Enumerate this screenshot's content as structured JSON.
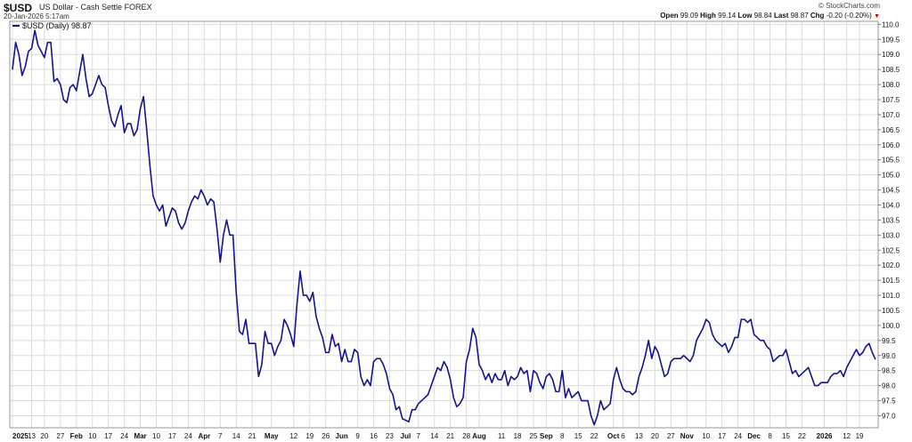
{
  "header": {
    "symbol": "$USD",
    "description": "US Dollar - Cash Settle",
    "exchange": "FOREX",
    "datetime": "20-Jan-2026 5:17am",
    "brand": "© StockCharts.com",
    "open_label": "Open",
    "open": "99.09",
    "high_label": "High",
    "high": "99.14",
    "low_label": "Low",
    "low": "98.84",
    "last_label": "Last",
    "last": "98.87",
    "chg_label": "Chg",
    "chg": "-0.20 (-0.20%)",
    "arrow_glyph": "▼"
  },
  "colors": {
    "line": "#14148c",
    "grid": "#dcdcdc",
    "arrow": "#cc0000"
  },
  "chart_data": {
    "type": "line",
    "legend": "$USD (Daily) 98.87",
    "legend_position": "top-left",
    "grid": true,
    "ylim": [
      96.6,
      110.1
    ],
    "y_ticks": [
      "110.0",
      "109.5",
      "109.0",
      "108.5",
      "108.0",
      "107.5",
      "107.0",
      "106.5",
      "106.0",
      "105.5",
      "105.0",
      "104.5",
      "104.0",
      "103.5",
      "103.0",
      "102.5",
      "102.0",
      "101.5",
      "101.0",
      "100.5",
      "100.0",
      "99.5",
      "99.0",
      "98.5",
      "98.0",
      "97.5",
      "97.0"
    ],
    "x_ticks": [
      {
        "label": "2025",
        "index": 0,
        "bold": true
      },
      {
        "label": "13",
        "index": 6
      },
      {
        "label": "20",
        "index": 10
      },
      {
        "label": "27",
        "index": 15
      },
      {
        "label": "Feb",
        "index": 20,
        "bold": true
      },
      {
        "label": "10",
        "index": 25
      },
      {
        "label": "17",
        "index": 30
      },
      {
        "label": "24",
        "index": 35
      },
      {
        "label": "Mar",
        "index": 40,
        "bold": true
      },
      {
        "label": "10",
        "index": 45
      },
      {
        "label": "17",
        "index": 50
      },
      {
        "label": "24",
        "index": 55
      },
      {
        "label": "Apr",
        "index": 60,
        "bold": true
      },
      {
        "label": "7",
        "index": 65
      },
      {
        "label": "14",
        "index": 70
      },
      {
        "label": "21",
        "index": 75
      },
      {
        "label": "May",
        "index": 81,
        "bold": true
      },
      {
        "label": "12",
        "index": 88
      },
      {
        "label": "19",
        "index": 93
      },
      {
        "label": "26",
        "index": 98
      },
      {
        "label": "Jun",
        "index": 103,
        "bold": true
      },
      {
        "label": "9",
        "index": 108
      },
      {
        "label": "16",
        "index": 113
      },
      {
        "label": "23",
        "index": 118
      },
      {
        "label": "Jul",
        "index": 123,
        "bold": true
      },
      {
        "label": "7",
        "index": 127
      },
      {
        "label": "14",
        "index": 132
      },
      {
        "label": "21",
        "index": 137
      },
      {
        "label": "28",
        "index": 142
      },
      {
        "label": "Aug",
        "index": 146,
        "bold": true
      },
      {
        "label": "11",
        "index": 153
      },
      {
        "label": "18",
        "index": 158
      },
      {
        "label": "25",
        "index": 163
      },
      {
        "label": "Sep",
        "index": 167,
        "bold": true
      },
      {
        "label": "8",
        "index": 172
      },
      {
        "label": "15",
        "index": 177
      },
      {
        "label": "22",
        "index": 182
      },
      {
        "label": "Oct",
        "index": 188,
        "bold": true
      },
      {
        "label": "6",
        "index": 191
      },
      {
        "label": "13",
        "index": 196
      },
      {
        "label": "20",
        "index": 201
      },
      {
        "label": "27",
        "index": 206
      },
      {
        "label": "Nov",
        "index": 211,
        "bold": true
      },
      {
        "label": "10",
        "index": 217
      },
      {
        "label": "17",
        "index": 222
      },
      {
        "label": "24",
        "index": 227
      },
      {
        "label": "Dec",
        "index": 232,
        "bold": true
      },
      {
        "label": "8",
        "index": 237
      },
      {
        "label": "15",
        "index": 242
      },
      {
        "label": "22",
        "index": 247
      },
      {
        "label": "2026",
        "index": 254,
        "bold": true
      },
      {
        "label": "12",
        "index": 261
      },
      {
        "label": "19",
        "index": 265
      }
    ],
    "values": [
      108.5,
      109.4,
      109.0,
      108.3,
      108.6,
      109.1,
      109.2,
      109.8,
      109.3,
      109.1,
      108.9,
      109.4,
      109.4,
      108.1,
      108.2,
      108.0,
      107.5,
      107.4,
      107.9,
      108.0,
      107.8,
      108.4,
      109.0,
      108.2,
      107.6,
      107.7,
      108.0,
      108.3,
      108.0,
      107.9,
      107.3,
      106.8,
      106.6,
      107.0,
      107.3,
      106.4,
      106.7,
      106.7,
      106.3,
      106.5,
      107.2,
      107.6,
      106.5,
      105.3,
      104.3,
      104.0,
      103.8,
      104.0,
      103.3,
      103.6,
      103.9,
      103.8,
      103.4,
      103.2,
      103.4,
      103.8,
      104.1,
      104.3,
      104.2,
      104.5,
      104.3,
      104.0,
      104.2,
      104.1,
      103.2,
      102.1,
      103.0,
      103.5,
      103.0,
      103.0,
      101.1,
      99.8,
      99.7,
      100.2,
      99.4,
      99.4,
      99.4,
      98.3,
      98.7,
      99.8,
      99.4,
      99.4,
      99.0,
      99.3,
      99.5,
      100.2,
      100.0,
      99.7,
      99.3,
      100.7,
      101.8,
      101.0,
      101.0,
      100.8,
      101.1,
      100.3,
      99.9,
      99.6,
      99.1,
      99.1,
      99.7,
      99.3,
      99.4,
      98.8,
      99.2,
      98.8,
      98.8,
      99.2,
      99.1,
      98.3,
      98.0,
      98.2,
      98.0,
      98.8,
      98.9,
      98.9,
      98.7,
      98.4,
      97.9,
      97.7,
      97.2,
      97.3,
      96.9,
      96.85,
      96.8,
      97.2,
      97.2,
      97.4,
      97.5,
      97.6,
      97.7,
      98.0,
      98.3,
      98.6,
      98.5,
      98.8,
      98.6,
      98.2,
      97.6,
      97.3,
      97.4,
      97.6,
      98.8,
      99.2,
      99.9,
      99.6,
      98.7,
      98.5,
      98.2,
      98.4,
      98.1,
      98.4,
      98.2,
      98.2,
      98.5,
      98.0,
      98.3,
      98.2,
      98.3,
      98.6,
      98.4,
      98.5,
      97.8,
      98.5,
      98.4,
      98.1,
      97.9,
      98.3,
      98.4,
      98.2,
      97.8,
      97.8,
      98.5,
      97.6,
      97.9,
      97.6,
      97.7,
      97.8,
      97.5,
      97.5,
      97.5,
      97.0,
      96.7,
      97.0,
      97.5,
      97.2,
      97.3,
      97.4,
      98.2,
      98.6,
      98.2,
      97.9,
      97.8,
      97.8,
      97.7,
      97.8,
      98.3,
      98.6,
      99.0,
      99.5,
      98.9,
      99.3,
      99.1,
      98.7,
      98.3,
      98.4,
      98.8,
      98.9,
      98.9,
      98.9,
      99.0,
      98.9,
      98.8,
      99.0,
      99.5,
      99.7,
      99.9,
      100.2,
      100.1,
      99.7,
      99.5,
      99.4,
      99.3,
      99.4,
      99.1,
      99.3,
      99.6,
      99.6,
      100.2,
      100.2,
      100.1,
      100.2,
      99.7,
      99.6,
      99.5,
      99.5,
      99.3,
      99.2,
      98.8,
      98.9,
      99.0,
      99.0,
      99.2,
      98.8,
      98.4,
      98.5,
      98.3,
      98.4,
      98.5,
      98.6,
      98.3,
      98.0,
      98.0,
      98.1,
      98.1,
      98.1,
      98.3,
      98.4,
      98.4,
      98.5,
      98.3,
      98.6,
      98.8,
      99.0,
      99.2,
      99.0,
      99.1,
      99.3,
      99.4,
      99.1,
      98.87
    ]
  }
}
